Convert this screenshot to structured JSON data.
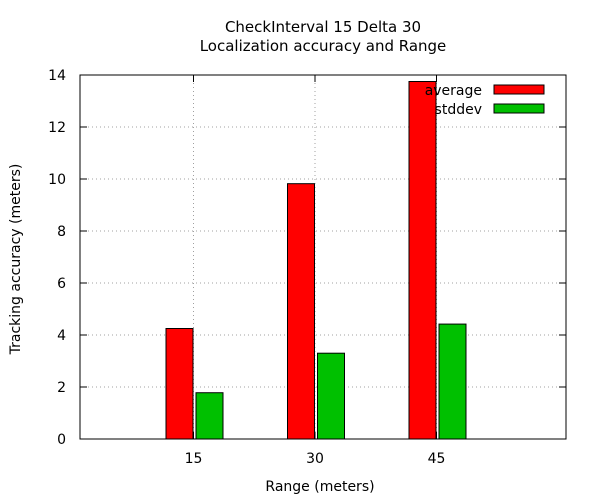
{
  "chart_data": {
    "type": "bar",
    "title": "CheckInterval 15 Delta 30",
    "subtitle": "Localization accuracy and Range",
    "xlabel": "Range (meters)",
    "ylabel": "Tracking accuracy (meters)",
    "categories": [
      "15",
      "30",
      "45"
    ],
    "series": [
      {
        "name": "average",
        "color": "#ff0000",
        "values": [
          4.25,
          9.82,
          13.75
        ]
      },
      {
        "name": "stddev",
        "color": "#00c000",
        "values": [
          1.78,
          3.3,
          4.42
        ]
      }
    ],
    "ylim": [
      0,
      14
    ],
    "yticks": [
      0,
      2,
      4,
      6,
      8,
      10,
      12,
      14
    ],
    "grid": true,
    "legend_position": "top-right"
  }
}
